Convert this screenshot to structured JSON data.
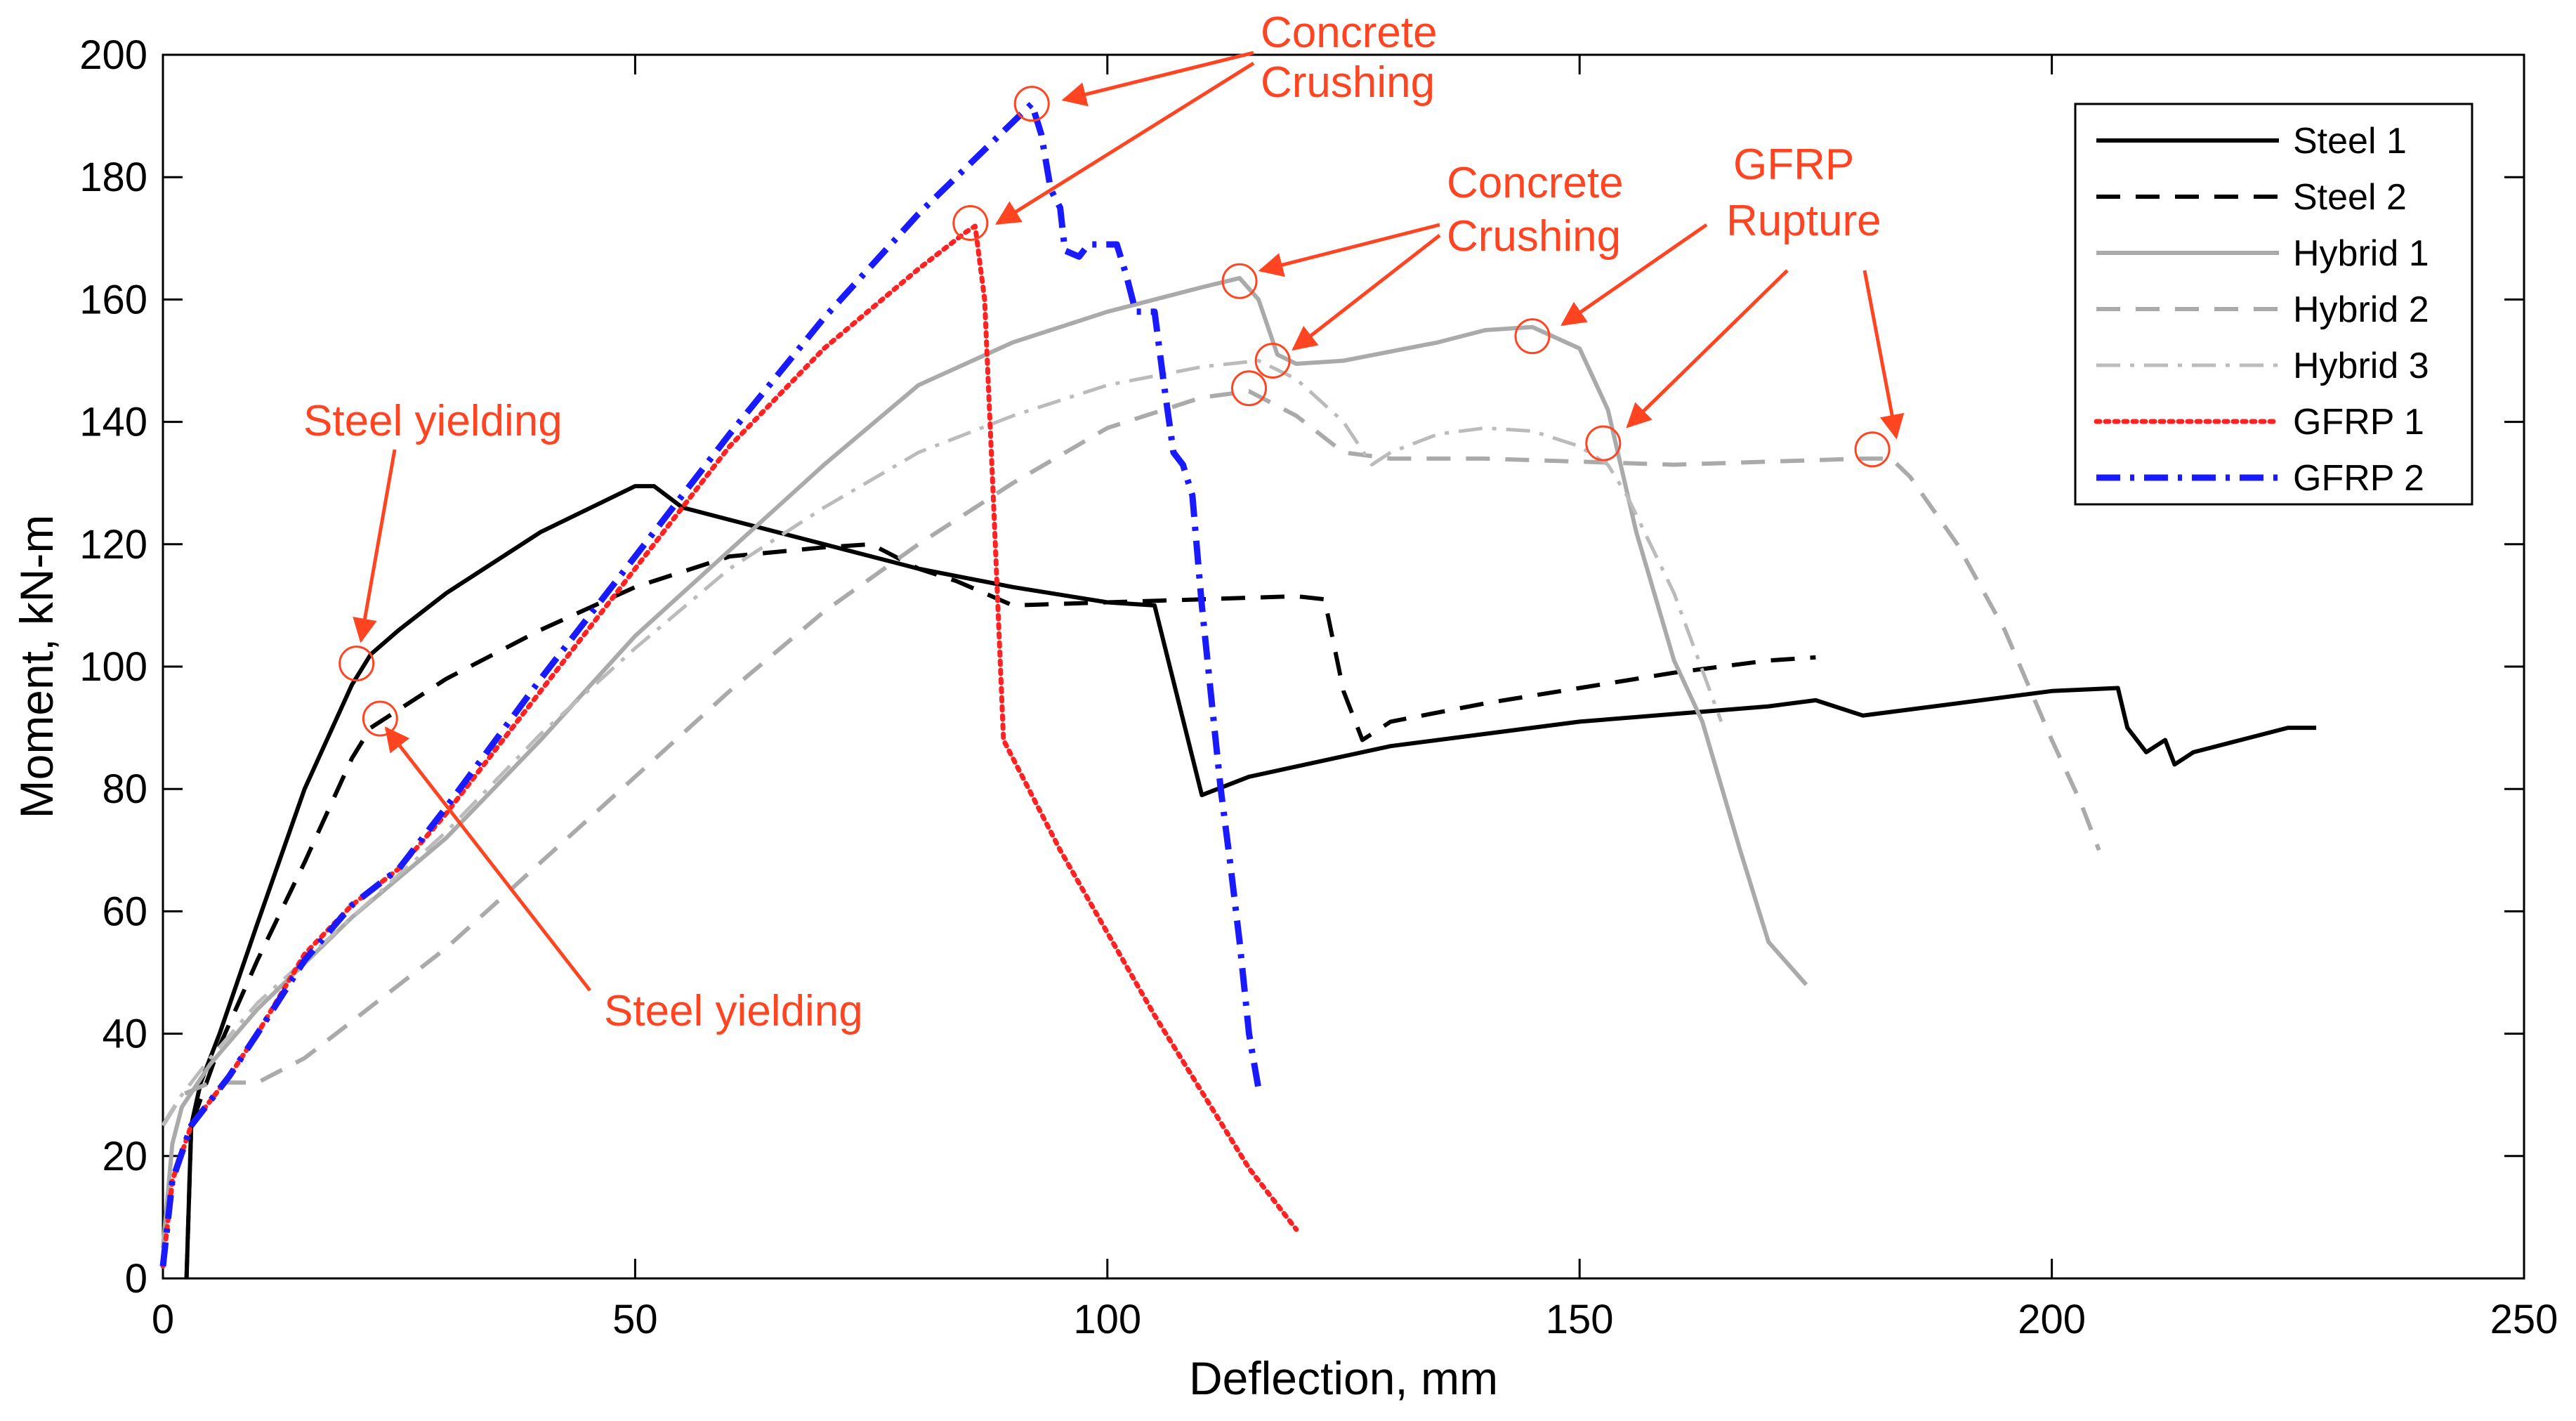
{
  "chart_data": {
    "type": "line",
    "xlabel": "Deflection, mm",
    "ylabel": "Moment, kN-m",
    "xlim": [
      0,
      250
    ],
    "ylim": [
      0,
      200
    ],
    "xticks": [
      0,
      50,
      100,
      150,
      200,
      250
    ],
    "yticks": [
      0,
      20,
      40,
      60,
      80,
      100,
      120,
      140,
      160,
      180,
      200
    ],
    "legend_position": "top-right",
    "series": [
      {
        "name": "Steel 1",
        "color": "#000000",
        "dash": "solid",
        "points": [
          [
            2.5,
            0
          ],
          [
            3,
            25
          ],
          [
            4,
            32
          ],
          [
            6,
            40
          ],
          [
            10,
            58
          ],
          [
            15,
            80
          ],
          [
            20,
            97
          ],
          [
            22,
            102
          ],
          [
            25,
            106
          ],
          [
            30,
            112
          ],
          [
            40,
            122
          ],
          [
            50,
            129.5
          ],
          [
            52,
            129.5
          ],
          [
            55,
            126
          ],
          [
            60,
            124
          ],
          [
            70,
            120
          ],
          [
            80,
            116
          ],
          [
            90,
            113
          ],
          [
            100,
            110.5
          ],
          [
            105,
            110
          ],
          [
            110,
            79
          ],
          [
            115,
            82
          ],
          [
            130,
            87
          ],
          [
            150,
            91
          ],
          [
            170,
            93.5
          ],
          [
            175,
            94.5
          ],
          [
            180,
            92
          ],
          [
            190,
            94
          ],
          [
            200,
            96
          ],
          [
            207,
            96.5
          ],
          [
            208,
            90
          ],
          [
            210,
            86
          ],
          [
            212,
            88
          ],
          [
            213,
            84
          ],
          [
            215,
            86
          ],
          [
            220,
            88
          ],
          [
            225,
            90
          ],
          [
            228,
            90
          ]
        ]
      },
      {
        "name": "Steel 2",
        "color": "#000000",
        "dash": "long-dash",
        "points": [
          [
            2.5,
            0
          ],
          [
            3,
            25
          ],
          [
            6,
            38
          ],
          [
            10,
            52
          ],
          [
            15,
            68
          ],
          [
            20,
            85
          ],
          [
            22,
            90
          ],
          [
            25,
            93
          ],
          [
            30,
            98
          ],
          [
            40,
            106
          ],
          [
            50,
            113
          ],
          [
            60,
            118
          ],
          [
            70,
            119.5
          ],
          [
            75,
            120
          ],
          [
            80,
            116
          ],
          [
            84,
            114
          ],
          [
            90,
            110
          ],
          [
            100,
            110.5
          ],
          [
            110,
            111
          ],
          [
            120,
            111.5
          ],
          [
            123,
            111
          ],
          [
            125,
            96
          ],
          [
            127,
            88
          ],
          [
            130,
            91
          ],
          [
            140,
            94
          ],
          [
            150,
            96.5
          ],
          [
            160,
            99
          ],
          [
            170,
            101
          ],
          [
            175,
            101.5
          ]
        ]
      },
      {
        "name": "Hybrid 1",
        "color": "#aaaaaa",
        "dash": "solid",
        "points": [
          [
            0,
            5
          ],
          [
            1,
            22
          ],
          [
            2,
            28
          ],
          [
            5,
            35
          ],
          [
            10,
            44
          ],
          [
            20,
            59
          ],
          [
            30,
            72
          ],
          [
            40,
            88
          ],
          [
            50,
            105
          ],
          [
            60,
            119
          ],
          [
            70,
            133
          ],
          [
            80,
            146
          ],
          [
            90,
            153
          ],
          [
            100,
            158
          ],
          [
            110,
            162
          ],
          [
            114,
            163.5
          ],
          [
            116,
            160
          ],
          [
            118,
            151
          ],
          [
            120,
            149.5
          ],
          [
            125,
            150
          ],
          [
            135,
            153
          ],
          [
            140,
            155
          ],
          [
            145,
            155.5
          ],
          [
            150,
            152
          ],
          [
            153,
            142
          ],
          [
            156,
            122
          ],
          [
            160,
            101
          ],
          [
            163,
            91
          ],
          [
            167,
            70
          ],
          [
            170,
            55
          ],
          [
            174,
            48
          ]
        ]
      },
      {
        "name": "Hybrid 2",
        "color": "#aaaaaa",
        "dash": "long-dash",
        "points": [
          [
            0,
            25
          ],
          [
            2,
            30
          ],
          [
            5,
            32
          ],
          [
            10,
            32
          ],
          [
            15,
            36
          ],
          [
            20,
            42
          ],
          [
            30,
            54
          ],
          [
            40,
            68
          ],
          [
            50,
            82
          ],
          [
            60,
            96
          ],
          [
            70,
            109
          ],
          [
            80,
            120
          ],
          [
            90,
            130
          ],
          [
            100,
            139
          ],
          [
            110,
            144
          ],
          [
            115,
            145
          ],
          [
            120,
            141
          ],
          [
            125,
            135
          ],
          [
            130,
            134
          ],
          [
            140,
            134
          ],
          [
            150,
            133.5
          ],
          [
            160,
            133
          ],
          [
            170,
            133.5
          ],
          [
            180,
            134
          ],
          [
            183,
            134
          ],
          [
            185,
            131
          ],
          [
            190,
            120
          ],
          [
            195,
            106
          ],
          [
            200,
            88
          ],
          [
            203,
            78
          ],
          [
            205,
            70
          ]
        ]
      },
      {
        "name": "Hybrid 3",
        "color": "#bbbbbb",
        "dash": "dash-dot",
        "points": [
          [
            0,
            25
          ],
          [
            2,
            30
          ],
          [
            5,
            36
          ],
          [
            10,
            45
          ],
          [
            20,
            59
          ],
          [
            30,
            73
          ],
          [
            40,
            89
          ],
          [
            50,
            103
          ],
          [
            60,
            116
          ],
          [
            70,
            126
          ],
          [
            80,
            135
          ],
          [
            90,
            141
          ],
          [
            100,
            146
          ],
          [
            110,
            149
          ],
          [
            116,
            150
          ],
          [
            120,
            147
          ],
          [
            125,
            140
          ],
          [
            128,
            133
          ],
          [
            130,
            135
          ],
          [
            135,
            138
          ],
          [
            140,
            139
          ],
          [
            145,
            138.5
          ],
          [
            150,
            136
          ],
          [
            153,
            133
          ],
          [
            155,
            128
          ],
          [
            160,
            112
          ],
          [
            165,
            91
          ]
        ]
      },
      {
        "name": "GFRP 1",
        "color": "#ff2222",
        "dash": "dotted",
        "points": [
          [
            0,
            2
          ],
          [
            1,
            16
          ],
          [
            3,
            25
          ],
          [
            7,
            33
          ],
          [
            10,
            40
          ],
          [
            15,
            53
          ],
          [
            20,
            61
          ],
          [
            25,
            67
          ],
          [
            30,
            76
          ],
          [
            40,
            96
          ],
          [
            50,
            116
          ],
          [
            60,
            136
          ],
          [
            70,
            152
          ],
          [
            80,
            165
          ],
          [
            85,
            171
          ],
          [
            86,
            172
          ],
          [
            87,
            160
          ],
          [
            88,
            125
          ],
          [
            89,
            88
          ],
          [
            95,
            70
          ],
          [
            105,
            43
          ],
          [
            115,
            18
          ],
          [
            120,
            8
          ]
        ]
      },
      {
        "name": "GFRP 2",
        "color": "#1a1aff",
        "dash": "dash-dot",
        "points": [
          [
            0,
            2
          ],
          [
            1,
            16
          ],
          [
            3,
            25
          ],
          [
            7,
            33
          ],
          [
            10,
            40
          ],
          [
            15,
            52
          ],
          [
            20,
            61
          ],
          [
            25,
            67
          ],
          [
            30,
            77
          ],
          [
            40,
            98
          ],
          [
            50,
            118
          ],
          [
            60,
            138
          ],
          [
            70,
            157
          ],
          [
            80,
            174
          ],
          [
            90,
            189
          ],
          [
            92,
            192
          ],
          [
            93,
            187
          ],
          [
            94,
            178
          ],
          [
            95,
            175
          ],
          [
            95.5,
            168
          ],
          [
            97,
            167
          ],
          [
            98,
            169
          ],
          [
            101,
            169
          ],
          [
            102,
            164
          ],
          [
            103,
            158
          ],
          [
            105,
            158
          ],
          [
            106,
            146
          ],
          [
            107,
            135
          ],
          [
            108,
            133
          ],
          [
            109,
            128
          ],
          [
            110,
            110
          ],
          [
            111,
            95
          ],
          [
            112,
            80
          ],
          [
            113,
            68
          ],
          [
            114,
            55
          ],
          [
            115,
            40
          ],
          [
            116,
            31
          ]
        ]
      }
    ],
    "markers": [
      {
        "x": 20.5,
        "y": 100.5,
        "color": "#ff4422"
      },
      {
        "x": 23,
        "y": 91.5,
        "color": "#ff4422"
      },
      {
        "x": 92,
        "y": 192,
        "color": "#ff4422"
      },
      {
        "x": 85.5,
        "y": 172.5,
        "color": "#ff4422"
      },
      {
        "x": 114,
        "y": 163,
        "color": "#ff4422"
      },
      {
        "x": 117.5,
        "y": 150,
        "color": "#ff4422"
      },
      {
        "x": 115,
        "y": 145.5,
        "color": "#ff4422"
      },
      {
        "x": 145,
        "y": 154,
        "color": "#ff4422"
      },
      {
        "x": 152.5,
        "y": 136.5,
        "color": "#ff4422"
      },
      {
        "x": 181,
        "y": 135.5,
        "color": "#ff4422"
      }
    ],
    "annotations": [
      {
        "id": "steel-yielding-upper",
        "lines": [
          "Steel yielding"
        ]
      },
      {
        "id": "steel-yielding-lower",
        "lines": [
          "Steel yielding"
        ]
      },
      {
        "id": "concrete-crushing-top",
        "lines": [
          "Concrete",
          "Crushing"
        ]
      },
      {
        "id": "concrete-crushing-mid",
        "lines": [
          "Concrete",
          "Crushing"
        ]
      },
      {
        "id": "gfrp-rupture",
        "lines": [
          "GFRP",
          "Rupture"
        ]
      }
    ]
  }
}
